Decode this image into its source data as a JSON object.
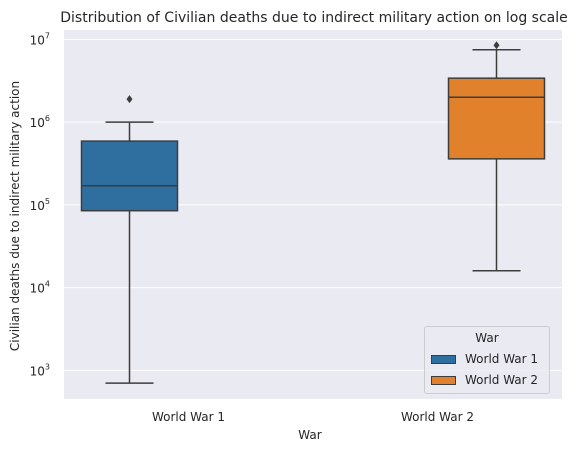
{
  "chart_data": {
    "type": "box",
    "title": "Distribution of Civilian deaths due to indirect military action on log scale",
    "xlabel": "War",
    "ylabel": "Civilian deaths due to indirect military action",
    "yscale": "log",
    "ylim": [
      450,
      13000000
    ],
    "grid": true,
    "categories": [
      "World War 1",
      "World War 2"
    ],
    "series": [
      {
        "name": "World War 1",
        "category": "World War 1",
        "color": "#2f6f9f",
        "whisker_low": 700,
        "q1": 85000,
        "median": 170000,
        "q3": 590000,
        "whisker_high": 1000000,
        "outliers": [
          1900000
        ]
      },
      {
        "name": "World War 2",
        "category": "World War 2",
        "color": "#e1812c",
        "whisker_low": 16000,
        "q1": 360000,
        "median": 2000000,
        "q3": 3400000,
        "whisker_high": 7500000,
        "outliers": [
          8500000
        ]
      }
    ],
    "y_ticks": [
      {
        "value": 1000,
        "base": "10",
        "exp": "3"
      },
      {
        "value": 10000,
        "base": "10",
        "exp": "4"
      },
      {
        "value": 100000,
        "base": "10",
        "exp": "5"
      },
      {
        "value": 1000000,
        "base": "10",
        "exp": "6"
      },
      {
        "value": 10000000,
        "base": "10",
        "exp": "7"
      }
    ],
    "legend": {
      "title": "War",
      "position": "lower-right",
      "entries": [
        {
          "label": "World War 1",
          "color": "#2f6f9f"
        },
        {
          "label": "World War 2",
          "color": "#e1812c"
        }
      ]
    }
  }
}
